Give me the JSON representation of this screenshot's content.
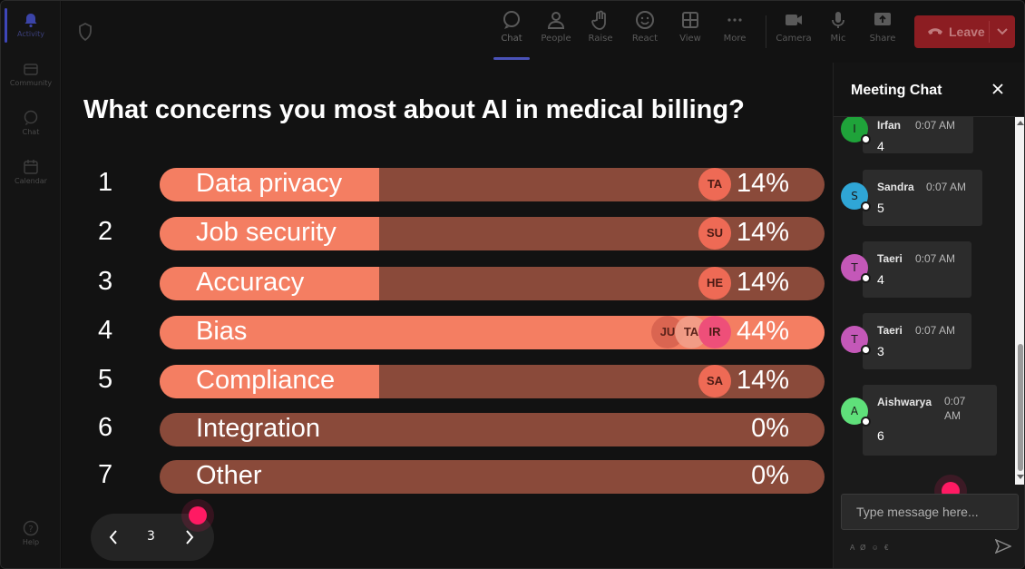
{
  "rail": {
    "items": [
      {
        "label": "Activity",
        "icon": "bell-icon"
      },
      {
        "label": "Community",
        "icon": "community-icon"
      },
      {
        "label": "Chat",
        "icon": "chat-icon"
      },
      {
        "label": "Calendar",
        "icon": "calendar-icon"
      }
    ],
    "help": "Help"
  },
  "toolbar": {
    "chat": "Chat",
    "people": "People",
    "raise": "Raise",
    "react": "React",
    "view": "View",
    "more": "More",
    "camera": "Camera",
    "mic": "Mic",
    "share": "Share",
    "leave": "Leave"
  },
  "poll": {
    "question": "What concerns you most about AI in medical billing?",
    "options": [
      {
        "num": "1",
        "label": "Data privacy",
        "pct": "14%",
        "fill": 0.33,
        "avatars": [
          "TA"
        ]
      },
      {
        "num": "2",
        "label": "Job security",
        "pct": "14%",
        "fill": 0.33,
        "avatars": [
          "SU"
        ]
      },
      {
        "num": "3",
        "label": "Accuracy",
        "pct": "14%",
        "fill": 0.33,
        "avatars": [
          "HE"
        ]
      },
      {
        "num": "4",
        "label": "Bias",
        "pct": "44%",
        "fill": 1.0,
        "avatars": [
          "JU",
          "TA",
          "IR"
        ]
      },
      {
        "num": "5",
        "label": "Compliance",
        "pct": "14%",
        "fill": 0.33,
        "avatars": [
          "SA"
        ]
      },
      {
        "num": "6",
        "label": "Integration",
        "pct": "0%",
        "fill": 0,
        "avatars": []
      },
      {
        "num": "7",
        "label": "Other",
        "pct": "0%",
        "fill": 0,
        "avatars": []
      }
    ],
    "page": "3"
  },
  "chat": {
    "title": "Meeting Chat",
    "messages": [
      {
        "initial": "I",
        "name": "Irfan",
        "time": "0:07 AM",
        "body": "4",
        "color": "#1fa33a"
      },
      {
        "initial": "S",
        "name": "Sandra",
        "time": "0:07 AM",
        "body": "5",
        "color": "#2fa6d6"
      },
      {
        "initial": "T",
        "name": "Taeri",
        "time": "0:07 AM",
        "body": "4",
        "color": "#c458b8"
      },
      {
        "initial": "T",
        "name": "Taeri",
        "time": "0:07 AM",
        "body": "3",
        "color": "#c458b8"
      },
      {
        "initial": "A",
        "name": "Aishwarya",
        "time": "0:07 AM",
        "body": "6",
        "color": "#5fe07a"
      }
    ],
    "input_placeholder": "Type message here...",
    "format_hint": "A Ø ☺ €"
  },
  "colors": {
    "bar_fill": "#f47e62",
    "bar_track": "#8a4a3a",
    "leave": "#8c1d22",
    "cursor": "#ff1a63"
  }
}
